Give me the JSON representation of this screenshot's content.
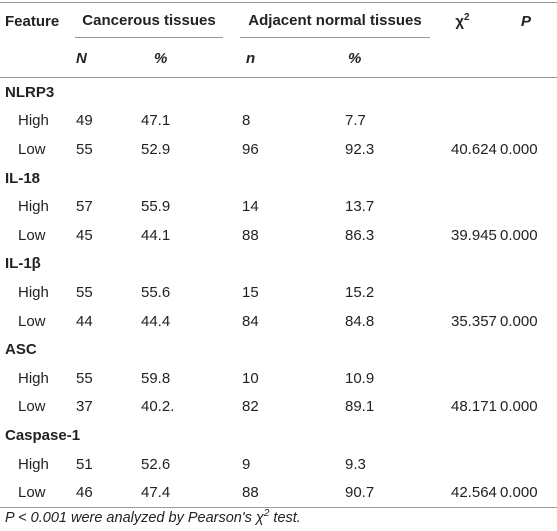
{
  "header": {
    "feature": "Feature",
    "cancerous": "Cancerous tissues",
    "adjacent": "Adjacent normal tissues",
    "chi_symbol": "χ",
    "chi_sup": "2",
    "p": "P",
    "sub": [
      "N",
      "%",
      "n",
      "%"
    ]
  },
  "groups": [
    {
      "name": "NLRP3",
      "rows": [
        [
          "High",
          "49",
          "47.1",
          "8",
          "7.7"
        ],
        [
          "Low",
          "55",
          "52.9",
          "96",
          "92.3",
          "40.624",
          "0.000"
        ]
      ]
    },
    {
      "name": "IL-18",
      "rows": [
        [
          "High",
          "57",
          "55.9",
          "14",
          "13.7"
        ],
        [
          "Low",
          "45",
          "44.1",
          "88",
          "86.3",
          "39.945",
          "0.000"
        ]
      ]
    },
    {
      "name": "IL-1β",
      "rows": [
        [
          "High",
          "55",
          "55.6",
          "15",
          "15.2"
        ],
        [
          "Low",
          "44",
          "44.4",
          "84",
          "84.8",
          "35.357",
          "0.000"
        ]
      ]
    },
    {
      "name": "ASC",
      "rows": [
        [
          "High",
          "55",
          "59.8",
          "10",
          "10.9"
        ],
        [
          "Low",
          "37",
          "40.2.",
          "82",
          "89.1",
          "48.171",
          "0.000"
        ]
      ]
    },
    {
      "name": "Caspase-1",
      "rows": [
        [
          "High",
          "51",
          "52.6",
          "9",
          "9.3"
        ],
        [
          "Low",
          "46",
          "47.4",
          "88",
          "90.7",
          "42.564",
          "0.000"
        ]
      ]
    }
  ],
  "footnote": {
    "p": "P",
    "text1": " < 0.001 were analyzed by Pearson's ",
    "chi": "χ",
    "sup": "2",
    "text2": " test."
  }
}
